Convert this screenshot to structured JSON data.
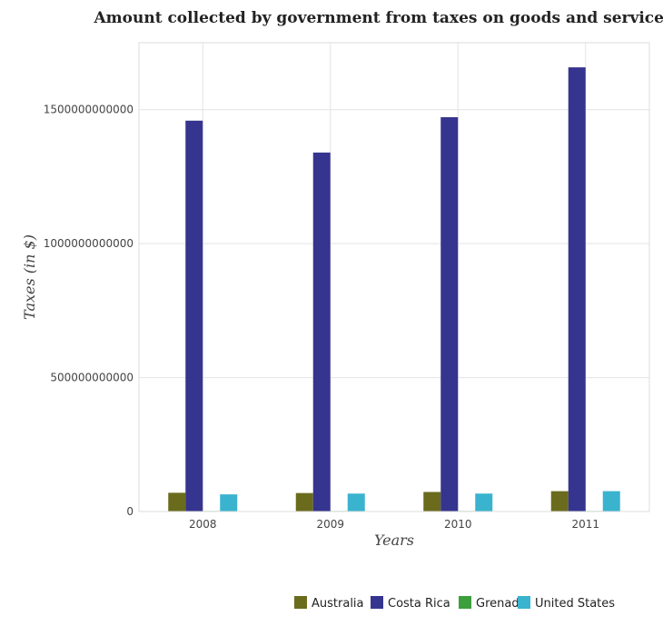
{
  "chart_data": {
    "type": "bar",
    "title": "Amount collected by government from taxes on goods and services",
    "xlabel": "Years",
    "ylabel": "Taxes (in $)",
    "categories": [
      "2008",
      "2009",
      "2010",
      "2011"
    ],
    "ylim": [
      0,
      1750000000000
    ],
    "yticks": [
      0,
      500000000000,
      1000000000000,
      1500000000000
    ],
    "ytick_labels": [
      "0",
      "500000000000",
      "1000000000000",
      "1500000000000"
    ],
    "grid": true,
    "legend_position": "bottom-right",
    "series": [
      {
        "name": "Australia",
        "color": "#6b6b1e",
        "values": [
          70000000000,
          69000000000,
          73000000000,
          76000000000
        ]
      },
      {
        "name": "Costa Rica",
        "color": "#35358f",
        "values": [
          1459000000000,
          1340000000000,
          1472000000000,
          1658000000000
        ]
      },
      {
        "name": "Grenada",
        "color": "#3c9e3c",
        "values": [
          180000000,
          160000000,
          170000000,
          175000000
        ]
      },
      {
        "name": "United States",
        "color": "#3ab3cf",
        "values": [
          64000000000,
          67000000000,
          67000000000,
          76000000000
        ]
      }
    ]
  }
}
